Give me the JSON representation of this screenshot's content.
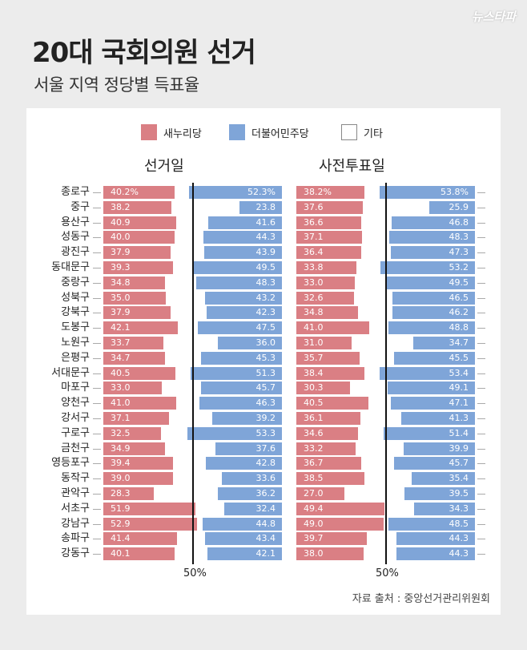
{
  "header": {
    "title": "20대 국회의원 선거",
    "subtitle": "서울 지역 정당별 득표율",
    "logo": "뉴스타파"
  },
  "legend": [
    {
      "label": "새누리당",
      "color": "#da7f84"
    },
    {
      "label": "더불어민주당",
      "color": "#7fa5d8"
    },
    {
      "label": "기타",
      "color": "#ffffff"
    }
  ],
  "source": "자료 출처 : 중앙선거관리위원회",
  "chart_data": [
    {
      "type": "bar",
      "title": "선거일",
      "reference_label": "50%",
      "reference_value": 50,
      "xlim": [
        0,
        100
      ],
      "categories": [
        "종로구",
        "중구",
        "용산구",
        "성동구",
        "광진구",
        "동대문구",
        "중랑구",
        "성북구",
        "강북구",
        "도봉구",
        "노원구",
        "은평구",
        "서대문구",
        "마포구",
        "양천구",
        "강서구",
        "구로구",
        "금천구",
        "영등포구",
        "동작구",
        "관악구",
        "서초구",
        "강남구",
        "송파구",
        "강동구"
      ],
      "series": [
        {
          "name": "새누리당",
          "values": [
            40.2,
            38.2,
            40.9,
            40.0,
            37.9,
            39.3,
            34.8,
            35.0,
            37.9,
            42.1,
            33.7,
            34.7,
            40.5,
            33.0,
            41.0,
            37.1,
            32.5,
            34.9,
            39.4,
            39.0,
            28.3,
            51.9,
            52.9,
            41.4,
            40.1
          ]
        },
        {
          "name": "더불어민주당",
          "values": [
            52.3,
            23.8,
            41.6,
            44.3,
            43.9,
            49.5,
            48.3,
            43.2,
            42.3,
            47.5,
            36.0,
            45.3,
            51.3,
            45.7,
            46.3,
            39.2,
            53.3,
            37.6,
            42.8,
            33.6,
            36.2,
            32.4,
            44.8,
            43.4,
            42.1
          ]
        }
      ]
    },
    {
      "type": "bar",
      "title": "사전투표일",
      "reference_label": "50%",
      "reference_value": 50,
      "xlim": [
        0,
        100
      ],
      "categories": [
        "종로구",
        "중구",
        "용산구",
        "성동구",
        "광진구",
        "동대문구",
        "중랑구",
        "성북구",
        "강북구",
        "도봉구",
        "노원구",
        "은평구",
        "서대문구",
        "마포구",
        "양천구",
        "강서구",
        "구로구",
        "금천구",
        "영등포구",
        "동작구",
        "관악구",
        "서초구",
        "강남구",
        "송파구",
        "강동구"
      ],
      "series": [
        {
          "name": "새누리당",
          "values": [
            38.2,
            37.6,
            36.6,
            37.1,
            36.4,
            33.8,
            33.0,
            32.6,
            34.8,
            41.0,
            31.0,
            35.7,
            38.4,
            30.3,
            40.5,
            36.1,
            34.6,
            33.2,
            36.7,
            38.5,
            27.0,
            49.4,
            49.0,
            39.7,
            38.0
          ]
        },
        {
          "name": "더불어민주당",
          "values": [
            53.8,
            25.9,
            46.8,
            48.3,
            47.3,
            53.2,
            49.5,
            46.5,
            46.2,
            48.8,
            34.7,
            45.5,
            53.4,
            49.1,
            47.1,
            41.3,
            51.4,
            39.9,
            45.7,
            35.4,
            39.5,
            34.3,
            48.5,
            44.3,
            44.3
          ]
        }
      ]
    }
  ]
}
